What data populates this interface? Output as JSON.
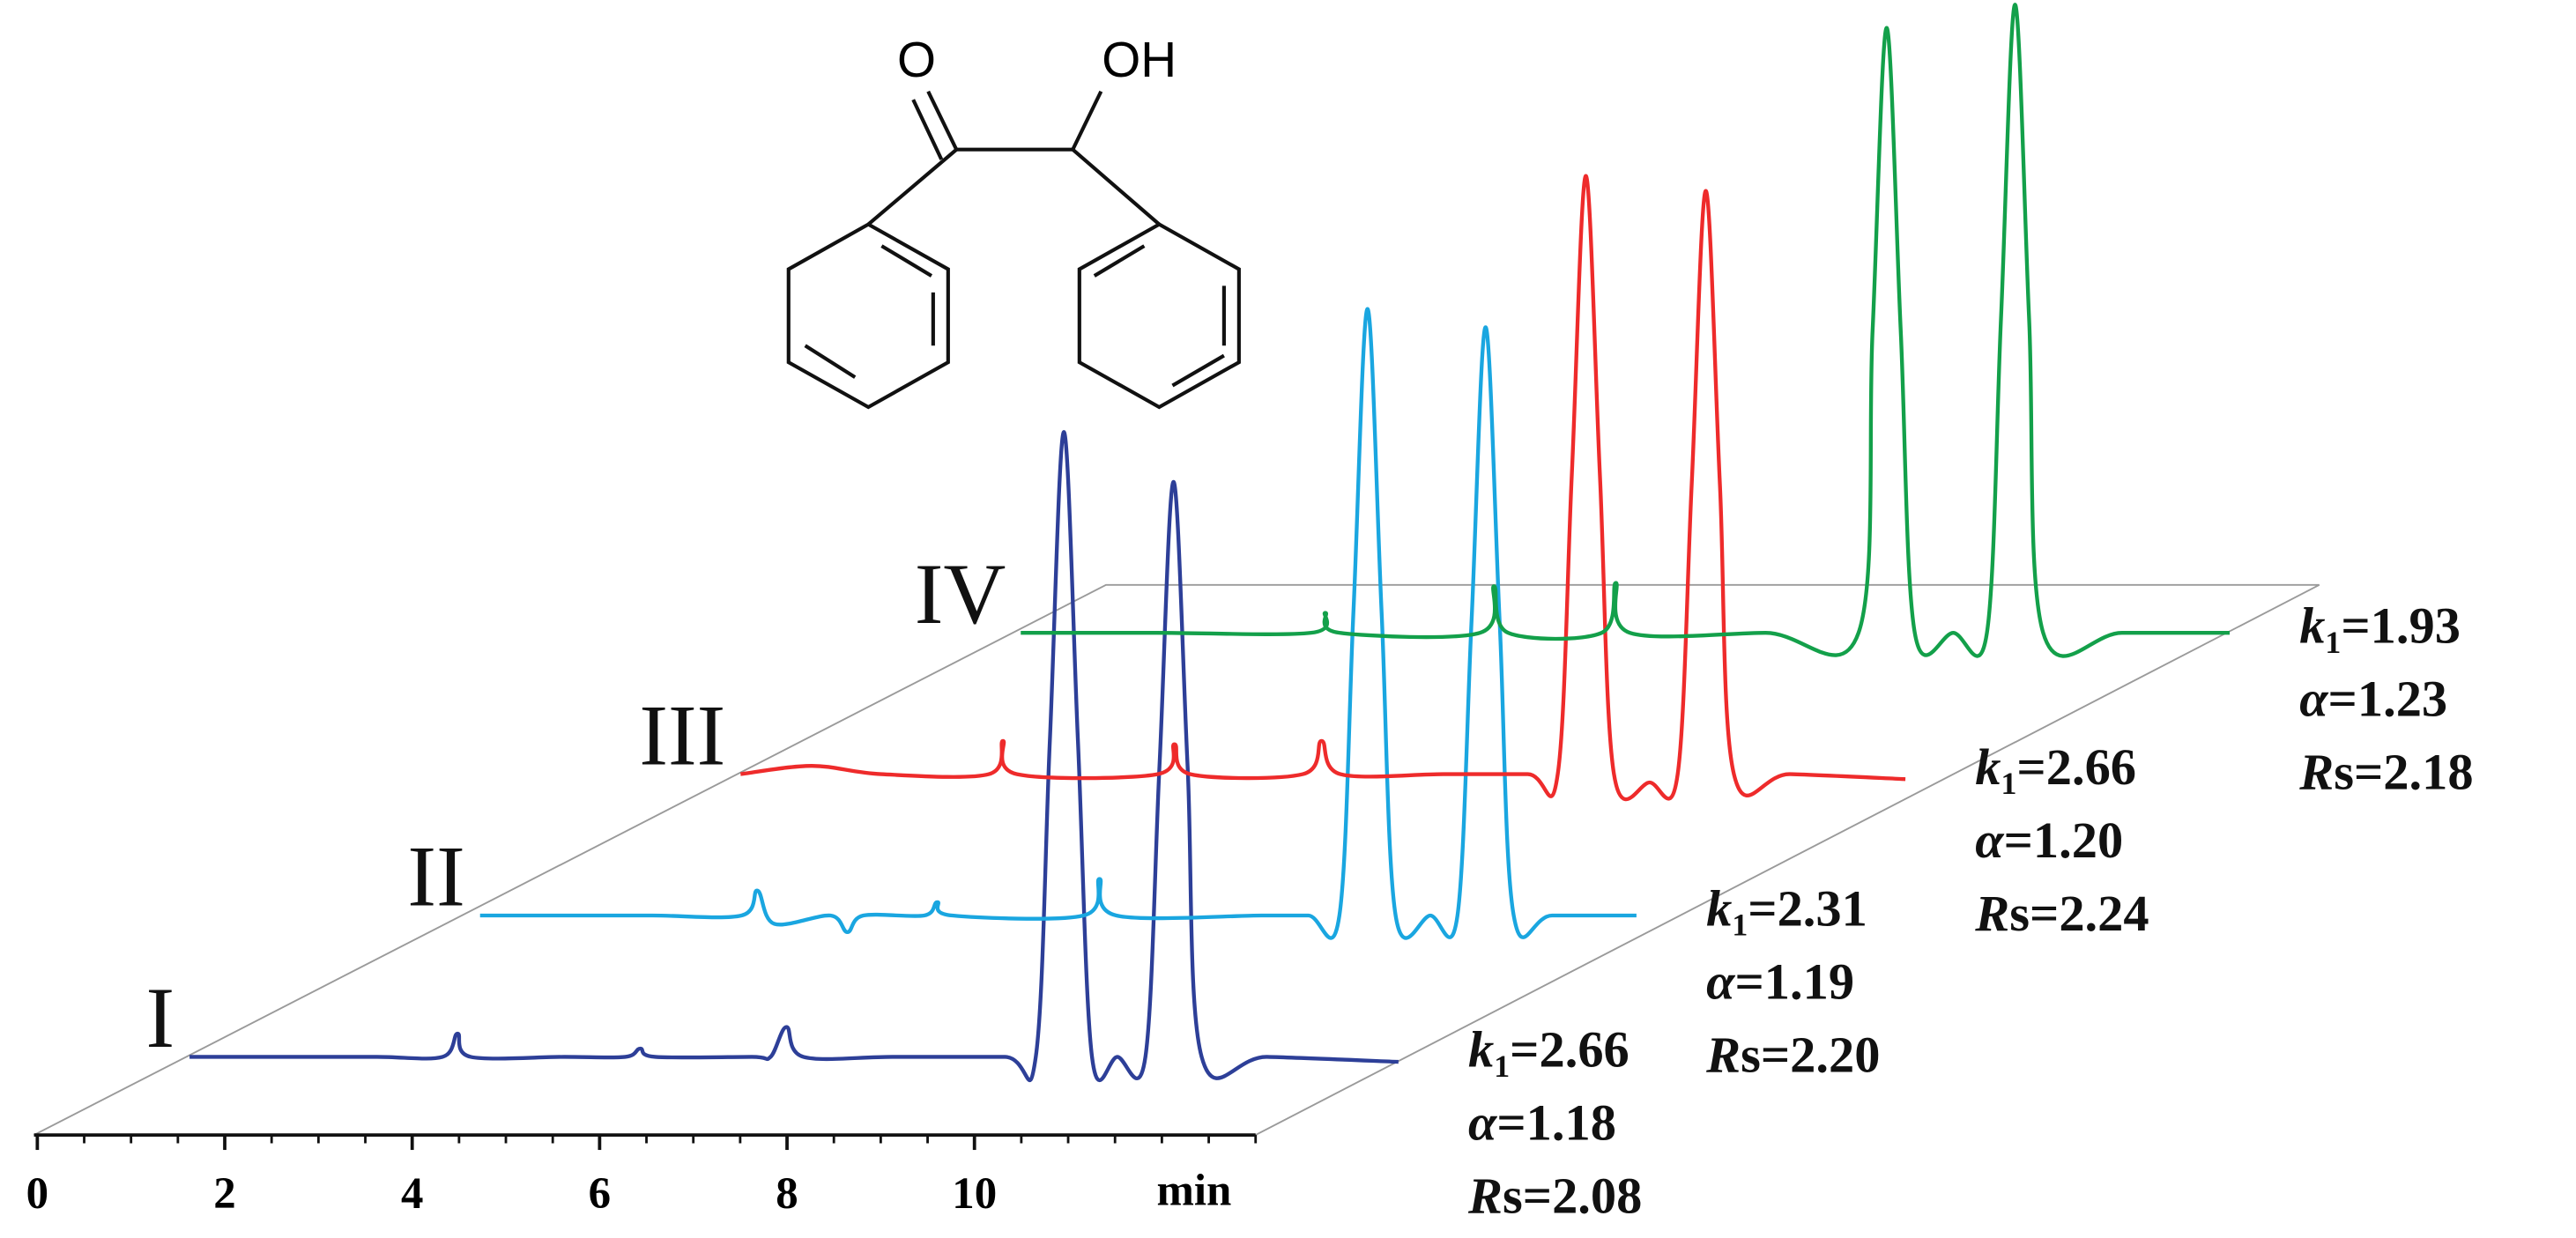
{
  "structure": {
    "labels": [
      "O",
      "OH"
    ]
  },
  "chart_data": {
    "type": "chromatogram",
    "x_label": "min",
    "xlim": [
      0,
      13
    ],
    "xticks": [
      0,
      2,
      4,
      6,
      8,
      10
    ],
    "xminorticks": [
      0,
      0.5,
      1,
      1.5,
      2,
      2.5,
      3,
      3.5,
      4,
      4.5,
      5,
      5.5,
      6,
      6.5,
      7,
      7.5,
      8,
      8.5,
      9,
      9.5,
      10,
      10.5,
      11,
      11.5,
      12,
      12.5,
      13
    ],
    "stat_names": [
      [
        "k",
        "1"
      ],
      [
        "α"
      ],
      [
        "R",
        "s"
      ]
    ],
    "equals": "=",
    "series": [
      {
        "name": "I",
        "color": "#2d3f98",
        "x": [
          0,
          1,
          2,
          2.7,
          2.86,
          3.0,
          4,
          4.65,
          4.81,
          4.97,
          6,
          6.2,
          6.37,
          6.55,
          7.5,
          8.7,
          9.03,
          9.18,
          9.33,
          9.48,
          9.63,
          9.9,
          10.2,
          10.35,
          10.5,
          10.65,
          10.8,
          11.5,
          12.9
        ],
        "values": [
          0,
          0,
          0,
          0,
          14,
          0,
          0,
          0,
          5,
          0,
          0,
          0,
          18,
          0,
          0,
          0,
          0,
          190,
          376,
          190,
          0,
          0,
          0,
          175,
          346,
          175,
          0,
          0,
          -3
        ],
        "stats": [
          "2.66",
          "1.18",
          "2.08"
        ]
      },
      {
        "name": "II",
        "color": "#1aa6e0",
        "x": [
          0.16,
          1,
          2,
          2.95,
          3.12,
          3.3,
          3.9,
          4.08,
          4.25,
          4.9,
          5.04,
          5.2,
          6.6,
          6.77,
          6.95,
          8.5,
          9.0,
          9.33,
          9.48,
          9.63,
          9.78,
          9.93,
          10.3,
          10.59,
          10.74,
          10.89,
          11.04,
          11.19,
          11.6,
          12.5
        ],
        "values": [
          0,
          0,
          0,
          0,
          15,
          -5,
          0,
          -10,
          0,
          0,
          8,
          0,
          0,
          22,
          0,
          0,
          0,
          0,
          183,
          365,
          183,
          0,
          0,
          0,
          177,
          354,
          177,
          0,
          0,
          0
        ],
        "stats": [
          "2.31",
          "1.19",
          "2.20"
        ]
      },
      {
        "name": "III",
        "color": "#ee2b2b",
        "x": [
          0,
          0.76,
          1.5,
          2.65,
          2.8,
          2.95,
          4.45,
          4.63,
          4.8,
          6.0,
          6.2,
          6.4,
          7.5,
          8.4,
          8.72,
          8.87,
          9.02,
          9.17,
          9.32,
          9.7,
          10.0,
          10.15,
          10.3,
          10.45,
          10.6,
          11.2,
          12.43
        ],
        "values": [
          0,
          5,
          0,
          0,
          20,
          0,
          0,
          18,
          0,
          0,
          20,
          0,
          0,
          0,
          0,
          180,
          360,
          180,
          0,
          -5,
          0,
          175,
          351,
          175,
          0,
          0,
          -3
        ],
        "stats": [
          "2.66",
          "1.20",
          "2.24"
        ]
      },
      {
        "name": "IV",
        "color": "#13a04a",
        "x": [
          0.05,
          1.5,
          3.15,
          3.3,
          3.45,
          4.95,
          5.1,
          5.25,
          6.25,
          6.4,
          6.55,
          8.0,
          8.99,
          9.14,
          9.29,
          9.44,
          9.59,
          10.0,
          10.36,
          10.51,
          10.66,
          10.81,
          10.96,
          11.8,
          12.95
        ],
        "values": [
          0,
          0,
          0,
          12,
          0,
          0,
          28,
          0,
          0,
          30,
          0,
          0,
          0,
          182,
          364,
          182,
          0,
          0,
          0,
          189,
          378,
          189,
          0,
          0,
          0
        ],
        "stats": [
          "1.93",
          "1.23",
          "2.18"
        ]
      }
    ]
  }
}
